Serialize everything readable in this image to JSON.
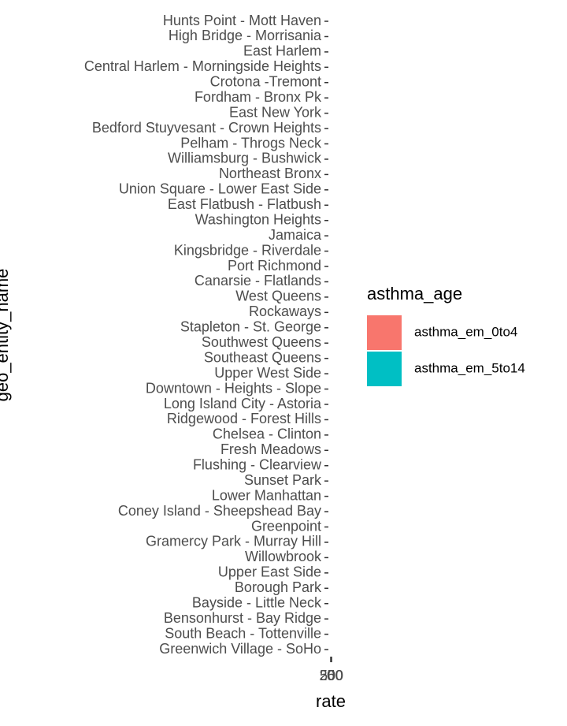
{
  "chart_data": {
    "type": "bar",
    "orientation": "horizontal",
    "x_label": "rate",
    "y_label": "geo_entity_name",
    "legend_title": "asthma_age",
    "categories": [
      "Hunts Point - Mott Haven",
      "High Bridge - Morrisania",
      "East Harlem",
      "Central Harlem - Morningside Heights",
      "Crotona -Tremont",
      "Fordham - Bronx Pk",
      "East New York",
      "Bedford Stuyvesant - Crown Heights",
      "Pelham - Throgs Neck",
      "Williamsburg - Bushwick",
      "Northeast Bronx",
      "Union Square - Lower East Side",
      "East Flatbush - Flatbush",
      "Washington Heights",
      "Jamaica",
      "Kingsbridge - Riverdale",
      "Port Richmond",
      "Canarsie - Flatlands",
      "West Queens",
      "Rockaways",
      "Stapleton - St. George",
      "Southwest Queens",
      "Southeast Queens",
      "Upper West Side",
      "Downtown - Heights - Slope",
      "Long Island City - Astoria",
      "Ridgewood - Forest Hills",
      "Chelsea - Clinton",
      "Fresh Meadows",
      "Flushing - Clearview",
      "Sunset Park",
      "Lower Manhattan",
      "Coney Island - Sheepshead Bay",
      "Greenpoint",
      "Gramercy Park - Murray Hill",
      "Willowbrook",
      "Upper East Side",
      "Borough Park",
      "Bayside - Little Neck",
      "Bensonhurst - Bay Ridge",
      "South Beach - Tottenville",
      "Greenwich Village - SoHo"
    ],
    "series": [
      {
        "name": "asthma_em_0to4",
        "color": "#F8766D",
        "values": [
          null,
          null,
          null,
          null,
          null,
          null,
          null,
          null,
          null,
          null,
          null,
          null,
          null,
          null,
          null,
          null,
          null,
          null,
          null,
          null,
          null,
          null,
          null,
          null,
          null,
          null,
          null,
          null,
          null,
          null,
          null,
          null,
          null,
          null,
          null,
          null,
          null,
          null,
          null,
          null,
          null,
          null
        ]
      },
      {
        "name": "asthma_em_5to14",
        "color": "#00BFC4",
        "values": [
          null,
          null,
          null,
          null,
          null,
          null,
          null,
          null,
          null,
          null,
          null,
          null,
          null,
          null,
          null,
          null,
          null,
          null,
          null,
          null,
          null,
          null,
          null,
          null,
          null,
          null,
          null,
          null,
          null,
          null,
          null,
          null,
          null,
          null,
          null,
          null,
          null,
          null,
          null,
          null,
          null,
          null
        ]
      }
    ],
    "xlim": [
      0,
      500
    ],
    "xticks": [
      0,
      250,
      500
    ]
  }
}
